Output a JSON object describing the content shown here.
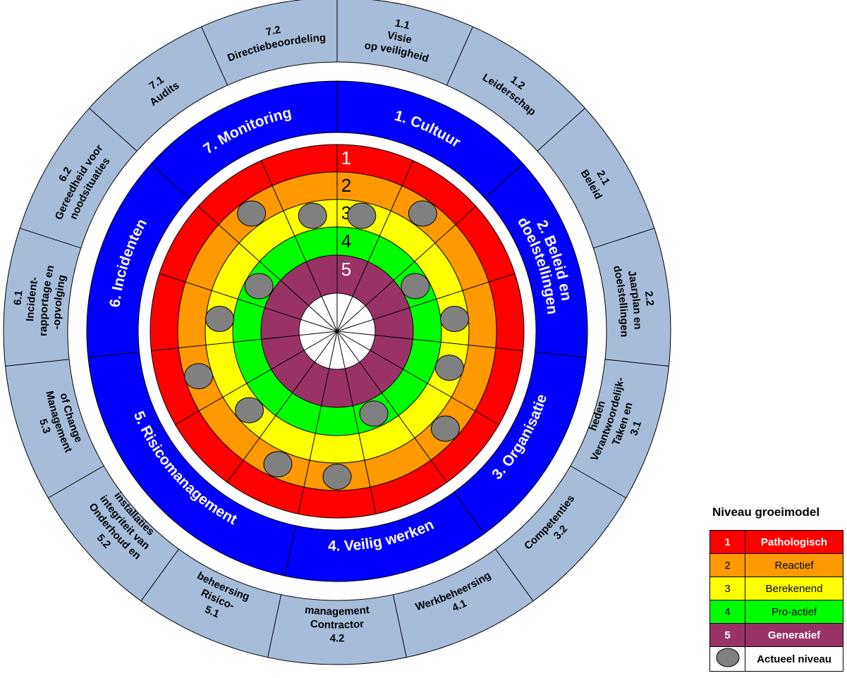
{
  "colors": {
    "section_band": "#0000ff",
    "outer_ring": "#a7bcd9",
    "level_1": "#ff0000",
    "level_2": "#ff9900",
    "level_3": "#ffff00",
    "level_4": "#00ff00",
    "level_5": "#993366",
    "marker": "#808080"
  },
  "levels": [
    {
      "num": "1",
      "name": "Pathologisch",
      "color": "#ff0000",
      "text_color": "#ffffff",
      "bold": true
    },
    {
      "num": "2",
      "name": "Reactief",
      "color": "#ff9900",
      "text_color": "#000000",
      "bold": false
    },
    {
      "num": "3",
      "name": "Berekenend",
      "color": "#ffff00",
      "text_color": "#000000",
      "bold": false
    },
    {
      "num": "4",
      "name": "Pro-actief",
      "color": "#00ff00",
      "text_color": "#000000",
      "bold": false
    },
    {
      "num": "5",
      "name": "Generatief",
      "color": "#993366",
      "text_color": "#ffffff",
      "bold": true
    }
  ],
  "sections": [
    {
      "label": "1. Cultuur",
      "subs": [
        {
          "num": "1.1",
          "text": [
            "Visie",
            "op veiligheid"
          ],
          "level": 3
        },
        {
          "num": "1.2",
          "text": [
            "Leiderschap"
          ],
          "level": 2
        }
      ]
    },
    {
      "label": [
        "2. Beleid en",
        "doelstellingen"
      ],
      "subs": [
        {
          "num": "2.1",
          "text": [
            "Beleid"
          ],
          "level": 4
        },
        {
          "num": "2.2",
          "text": [
            "Jaarplan en",
            "doelstellingen"
          ],
          "level": 3
        }
      ]
    },
    {
      "label": "3. Organisatie",
      "subs": [
        {
          "num": "3.1",
          "text": [
            "Taken en",
            "Verantwoordelijk-",
            "heden"
          ],
          "level": 3
        },
        {
          "num": "3.2",
          "text": [
            "Competenties"
          ],
          "level": 2
        }
      ]
    },
    {
      "label": "4. Veilig werken",
      "subs": [
        {
          "num": "4.1",
          "text": [
            "Werkbeheersing"
          ],
          "level": 4
        },
        {
          "num": "4.2",
          "text": [
            "Contractor",
            "management"
          ],
          "level": 2
        }
      ]
    },
    {
      "label": "5. Risicomanagement",
      "subs": [
        {
          "num": "5.1",
          "text": [
            "Risico-",
            "beheersing"
          ],
          "level": 2
        },
        {
          "num": "5.2",
          "text": [
            "Onderhoud en",
            "integriteit van",
            "installaties"
          ],
          "level": 3
        },
        {
          "num": "5.3",
          "text": [
            "Management",
            "of Change"
          ],
          "level": 2
        }
      ]
    },
    {
      "label": "6. Incidenten",
      "subs": [
        {
          "num": "6.1",
          "text": [
            "Incident-",
            "rapportage en",
            "-opvolging"
          ],
          "level": 3
        },
        {
          "num": "6.2",
          "text": [
            "Gereedheid voor",
            "noodsituaties"
          ],
          "level": 4
        }
      ]
    },
    {
      "label": "7. Monitoring",
      "subs": [
        {
          "num": "7.1",
          "text": [
            "Audits"
          ],
          "level": 2
        },
        {
          "num": "7.2",
          "text": [
            "Directiebeoordeling"
          ],
          "level": 3
        }
      ]
    }
  ],
  "legend": {
    "title": "Niveau groeimodel",
    "actual_label": "Actueel niveau"
  }
}
